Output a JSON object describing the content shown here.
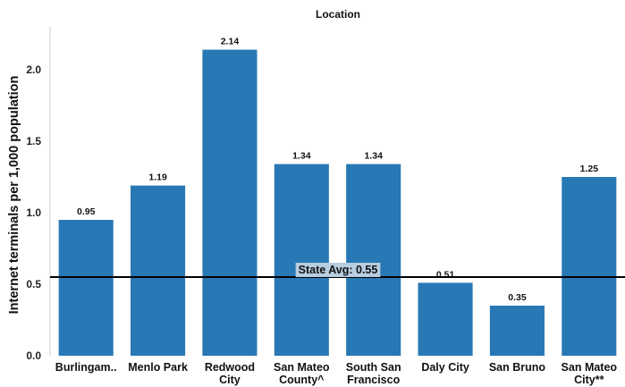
{
  "chart_data": {
    "type": "bar",
    "title": "Location",
    "xlabel": "",
    "ylabel": "Internet terminals per 1,000 population",
    "categories": [
      [
        "Burlingam.."
      ],
      [
        "Menlo Park"
      ],
      [
        "Redwood",
        "City"
      ],
      [
        "San Mateo",
        "County^"
      ],
      [
        "South San",
        "Francisco"
      ],
      [
        "Daly City"
      ],
      [
        "San Bruno"
      ],
      [
        "San Mateo",
        "City**"
      ]
    ],
    "values": [
      0.95,
      1.19,
      2.14,
      1.34,
      1.34,
      0.51,
      0.35,
      1.25
    ],
    "data_labels": [
      "0.95",
      "1.19",
      "2.14",
      "1.34",
      "1.34",
      "0.51",
      "0.35",
      "1.25"
    ],
    "yticks": [
      0.0,
      0.5,
      1.0,
      1.5,
      2.0
    ],
    "ytick_labels": [
      "0.0",
      "0.5",
      "1.0",
      "1.5",
      "2.0"
    ],
    "ylim": [
      0,
      2.3
    ],
    "grid": false,
    "reference_line": {
      "value": 0.55,
      "label": "State Avg: 0.55"
    },
    "colors": {
      "bar": "#2878b5",
      "reference_line": "#000000",
      "reference_label_bg": "#b7cde0",
      "axis": "#cfcfcf"
    }
  }
}
